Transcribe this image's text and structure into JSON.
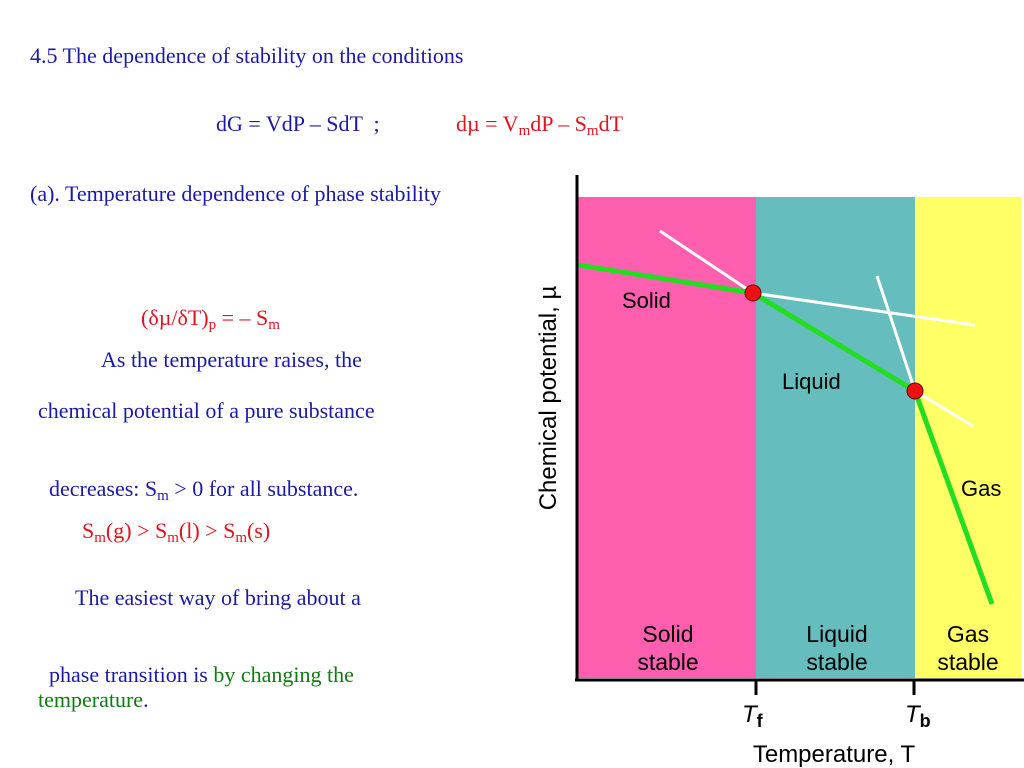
{
  "heading": "4.5 The dependence of stability on the conditions",
  "equation_1": "dG = VdP – SdT  ;",
  "equation_2": {
    "a": "dµ = V",
    "sub1": "m",
    "b": "dP – S",
    "sub2": "m",
    "c": "dT"
  },
  "section_a": "(a). Temperature dependence of phase stability",
  "derivative": {
    "a": "(δµ/δT)",
    "sub1": "p",
    "b": " = – S",
    "sub2": "m"
  },
  "para1": {
    "line1": "As the temperature raises, the",
    "line2": "chemical potential of a pure substance",
    "line3_a": "decreases: S",
    "line3_sub": "m",
    "line3_b": " > 0 for all substance."
  },
  "inequality": {
    "s1": "S",
    "m1": "m",
    "g": "(g) > S",
    "m2": "m",
    "l": "(l) > S",
    "m3": "m",
    "s": "(s)"
  },
  "para2": {
    "line1": "The easiest way of bring about a",
    "line2_a": "phase transition is ",
    "line2_b": "by changing the",
    "line3_a": "temperature",
    "line3_b": "."
  },
  "diagram": {
    "y_axis_label": "Chemical potential, µ",
    "x_axis_label": "Temperature, T",
    "tick_f_main": "T",
    "tick_f_sub": "f",
    "tick_b_main": "T",
    "tick_b_sub": "b",
    "phase_labels": {
      "solid": "Solid",
      "liquid": "Liquid",
      "gas": "Gas"
    },
    "regions": [
      {
        "line1": "Solid",
        "line2": "stable",
        "color": "#ff5fae"
      },
      {
        "line1": "Liquid",
        "line2": "stable",
        "color": "#66bdbd"
      },
      {
        "line1": "Gas",
        "line2": "stable",
        "color": "#ffff66"
      }
    ],
    "curve_color": "#22dd22",
    "point_color": "#ee1111"
  }
}
